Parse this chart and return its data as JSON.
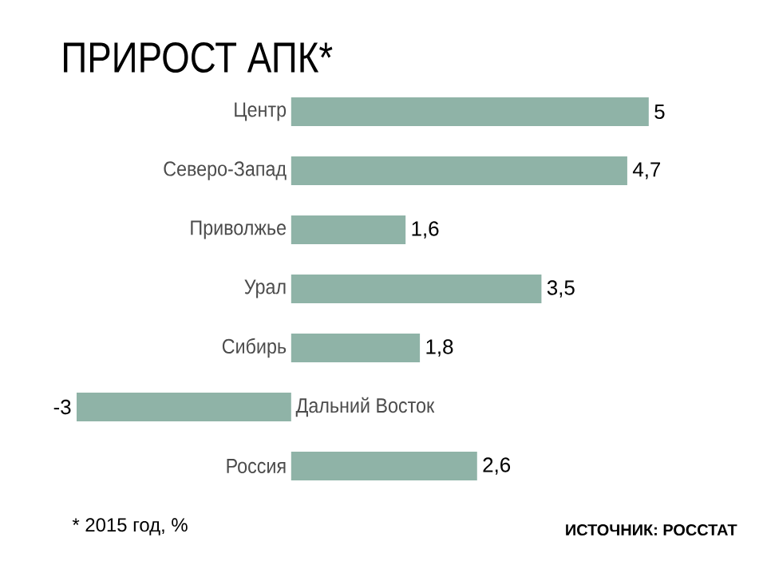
{
  "chart_data": {
    "type": "bar",
    "orientation": "horizontal",
    "title": "ПРИРОСТ АПК*",
    "categories": [
      "Центр",
      "Северо-Запад",
      "Приволжье",
      "Урал",
      "Сибирь",
      "Дальний Восток",
      "Россия"
    ],
    "values": [
      5,
      4.7,
      1.6,
      3.5,
      1.8,
      -3,
      2.6
    ],
    "value_labels": [
      "5",
      "4,7",
      "1,6",
      "3,5",
      "1,8",
      "-3",
      "2,6"
    ],
    "color": "#8fb3a7",
    "annotations": [
      "* 2015 год, %",
      "ИСТОЧНИК: РОССТАТ"
    ]
  }
}
